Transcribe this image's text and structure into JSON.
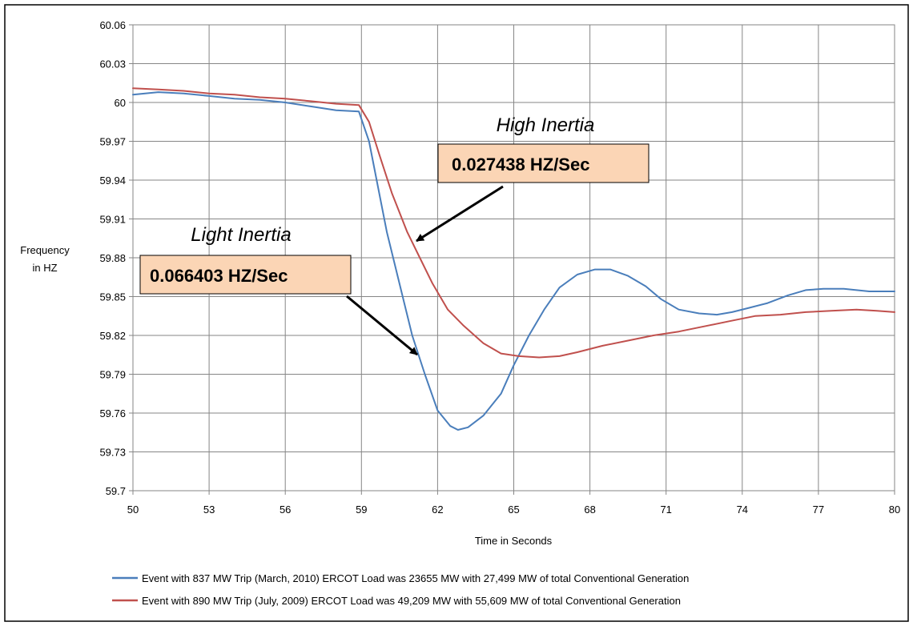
{
  "chart_data": {
    "type": "line",
    "title": "",
    "xlabel": "Time in Seconds",
    "ylabel_lines": [
      "Frequency",
      "in HZ"
    ],
    "xlim": [
      50,
      80
    ],
    "ylim": [
      59.7,
      60.06
    ],
    "x_ticks": [
      50,
      53,
      56,
      59,
      62,
      65,
      68,
      71,
      74,
      77,
      80
    ],
    "y_ticks": [
      "59.7",
      "59.73",
      "59.76",
      "59.79",
      "59.82",
      "59.85",
      "59.88",
      "59.91",
      "59.94",
      "59.97",
      "60",
      "60.03",
      "60.06"
    ],
    "grid": true,
    "legend_position": "bottom",
    "series": [
      {
        "name": "Event with 837 MW Trip (March, 2010) ERCOT Load was 23655 MW with  27,499 MW of total Conventional Generation",
        "color": "#4a7ebb",
        "points": [
          [
            50,
            60.006
          ],
          [
            51,
            60.008
          ],
          [
            52,
            60.007
          ],
          [
            53,
            60.005
          ],
          [
            54,
            60.003
          ],
          [
            55,
            60.002
          ],
          [
            56,
            60.0
          ],
          [
            57,
            59.997
          ],
          [
            58,
            59.994
          ],
          [
            58.9,
            59.993
          ],
          [
            59.3,
            59.97
          ],
          [
            59.6,
            59.94
          ],
          [
            60,
            59.9
          ],
          [
            60.5,
            59.86
          ],
          [
            61,
            59.82
          ],
          [
            61.5,
            59.79
          ],
          [
            62,
            59.762
          ],
          [
            62.5,
            59.75
          ],
          [
            62.8,
            59.747
          ],
          [
            63.2,
            59.749
          ],
          [
            63.8,
            59.758
          ],
          [
            64.5,
            59.775
          ],
          [
            65,
            59.797
          ],
          [
            65.6,
            59.82
          ],
          [
            66.2,
            59.84
          ],
          [
            66.8,
            59.857
          ],
          [
            67.5,
            59.867
          ],
          [
            68.2,
            59.871
          ],
          [
            68.8,
            59.871
          ],
          [
            69.5,
            59.866
          ],
          [
            70.2,
            59.858
          ],
          [
            70.8,
            59.848
          ],
          [
            71.5,
            59.84
          ],
          [
            72.3,
            59.837
          ],
          [
            73,
            59.836
          ],
          [
            73.6,
            59.838
          ],
          [
            74.2,
            59.841
          ],
          [
            75,
            59.845
          ],
          [
            75.8,
            59.851
          ],
          [
            76.5,
            59.855
          ],
          [
            77.2,
            59.856
          ],
          [
            78,
            59.856
          ],
          [
            79,
            59.854
          ],
          [
            80,
            59.854
          ]
        ]
      },
      {
        "name": "Event with 890 MW Trip (July, 2009)  ERCOT Load was 49,209 MW with  55,609 MW of total Conventional Generation",
        "color": "#c0504d",
        "points": [
          [
            50,
            60.011
          ],
          [
            51,
            60.01
          ],
          [
            52,
            60.009
          ],
          [
            53,
            60.007
          ],
          [
            54,
            60.006
          ],
          [
            55,
            60.004
          ],
          [
            56,
            60.003
          ],
          [
            57,
            60.001
          ],
          [
            58,
            59.999
          ],
          [
            58.9,
            59.998
          ],
          [
            59.3,
            59.985
          ],
          [
            59.7,
            59.96
          ],
          [
            60.2,
            59.93
          ],
          [
            60.8,
            59.9
          ],
          [
            61.3,
            59.88
          ],
          [
            61.8,
            59.86
          ],
          [
            62.4,
            59.84
          ],
          [
            63,
            59.828
          ],
          [
            63.8,
            59.814
          ],
          [
            64.5,
            59.806
          ],
          [
            65.2,
            59.804
          ],
          [
            66,
            59.803
          ],
          [
            66.8,
            59.804
          ],
          [
            67.5,
            59.807
          ],
          [
            68.5,
            59.812
          ],
          [
            69.5,
            59.816
          ],
          [
            70.5,
            59.82
          ],
          [
            71.5,
            59.823
          ],
          [
            72.5,
            59.827
          ],
          [
            73.5,
            59.831
          ],
          [
            74.5,
            59.835
          ],
          [
            75.5,
            59.836
          ],
          [
            76.5,
            59.838
          ],
          [
            77.5,
            59.839
          ],
          [
            78.5,
            59.84
          ],
          [
            79.3,
            59.839
          ],
          [
            80,
            59.838
          ]
        ]
      }
    ],
    "annotations": [
      {
        "label": "High Inertia",
        "value": "0.027438 HZ/Sec"
      },
      {
        "label": "Light Inertia",
        "value": "0.066403 HZ/Sec"
      }
    ]
  }
}
